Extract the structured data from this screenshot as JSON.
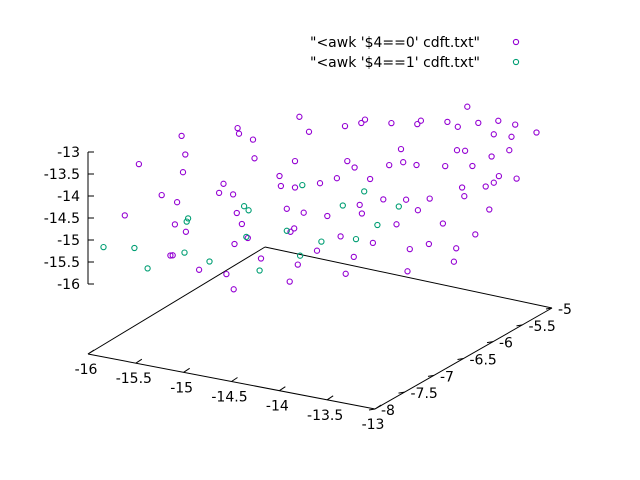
{
  "chart_data": {
    "type": "scatter",
    "title": "",
    "xlabel": "",
    "ylabel": "",
    "zlabel": "",
    "xlim": [
      -16,
      -13
    ],
    "ylim": [
      -8,
      -5
    ],
    "zlim": [
      -16,
      -13
    ],
    "x_ticks": [
      -16,
      -15.5,
      -15,
      -14.5,
      -14,
      -13.5,
      -13
    ],
    "y_ticks": [
      -8,
      -7.5,
      -7,
      -6.5,
      -6,
      -5.5,
      -5
    ],
    "z_ticks": [
      -13,
      -13.5,
      -14,
      -14.5,
      -15,
      -15.5,
      -16
    ],
    "x_tick_labels": [
      "-16",
      "-15.5",
      "-15",
      "-14.5",
      "-14",
      "-13.5",
      "-13"
    ],
    "y_tick_labels": [
      "-8",
      "-7.5",
      "-7",
      "-6.5",
      "-6",
      "-5.5",
      "-5"
    ],
    "z_tick_labels": [
      "-13",
      "-13.5",
      "-14",
      "-14.5",
      "-15",
      "-15.5",
      "-16"
    ],
    "legend_position": "top-right",
    "grid": false,
    "series": [
      {
        "name": "\"<awk '$4==0' cdft.txt\"",
        "color": "#9400d3",
        "points": [
          [
            -15.1,
            -6.9,
            -13.1
          ],
          [
            -14.3,
            -6.4,
            -13.0
          ],
          [
            -14.0,
            -6.1,
            -13.05
          ],
          [
            -13.6,
            -5.8,
            -13.1
          ],
          [
            -13.4,
            -5.6,
            -13.2
          ],
          [
            -15.5,
            -7.2,
            -13.9
          ],
          [
            -15.0,
            -6.8,
            -13.7
          ],
          [
            -14.7,
            -6.6,
            -13.8
          ],
          [
            -14.2,
            -6.4,
            -13.9
          ],
          [
            -13.9,
            -6.1,
            -13.6
          ],
          [
            -13.5,
            -5.8,
            -13.7
          ],
          [
            -13.3,
            -5.5,
            -13.5
          ],
          [
            -15.6,
            -7.4,
            -14.3
          ],
          [
            -15.2,
            -7.0,
            -14.2
          ],
          [
            -14.8,
            -6.7,
            -14.1
          ],
          [
            -14.5,
            -6.5,
            -14.3
          ],
          [
            -14.1,
            -6.3,
            -14.2
          ],
          [
            -13.8,
            -6.0,
            -14.0
          ],
          [
            -13.4,
            -5.7,
            -14.1
          ],
          [
            -13.2,
            -5.4,
            -13.9
          ],
          [
            -15.4,
            -7.5,
            -14.8
          ],
          [
            -15.0,
            -7.1,
            -14.7
          ],
          [
            -14.6,
            -6.9,
            -14.6
          ],
          [
            -14.3,
            -6.7,
            -14.8
          ],
          [
            -13.9,
            -6.4,
            -14.5
          ],
          [
            -13.6,
            -6.1,
            -14.6
          ],
          [
            -13.2,
            -5.8,
            -14.4
          ],
          [
            -15.3,
            -7.7,
            -15.3
          ],
          [
            -14.9,
            -7.3,
            -15.2
          ],
          [
            -14.5,
            -7.0,
            -15.0
          ],
          [
            -14.1,
            -6.8,
            -15.1
          ],
          [
            -13.7,
            -6.5,
            -14.9
          ],
          [
            -13.4,
            -6.2,
            -15.0
          ],
          [
            -13.1,
            -5.9,
            -14.8
          ],
          [
            -14.8,
            -7.6,
            -15.6
          ],
          [
            -14.3,
            -7.2,
            -15.5
          ],
          [
            -13.9,
            -6.9,
            -15.4
          ],
          [
            -13.5,
            -6.6,
            -15.3
          ],
          [
            -13.2,
            -6.3,
            -15.4
          ],
          [
            -15.7,
            -6.9,
            -13.4
          ],
          [
            -15.3,
            -6.6,
            -13.3
          ],
          [
            -14.9,
            -6.2,
            -13.2
          ],
          [
            -14.4,
            -5.9,
            -13.3
          ],
          [
            -14.0,
            -5.6,
            -13.4
          ],
          [
            -13.7,
            -5.3,
            -13.2
          ],
          [
            -15.8,
            -7.7,
            -14.6
          ],
          [
            -15.5,
            -7.3,
            -14.5
          ],
          [
            -15.1,
            -7.0,
            -14.4
          ],
          [
            -14.7,
            -6.6,
            -14.4
          ],
          [
            -14.4,
            -6.2,
            -14.0
          ],
          [
            -14.0,
            -5.9,
            -14.1
          ],
          [
            -13.6,
            -5.5,
            -14.0
          ],
          [
            -13.3,
            -5.2,
            -13.8
          ],
          [
            -15.2,
            -7.9,
            -15.1
          ],
          [
            -14.7,
            -7.4,
            -14.9
          ],
          [
            -14.4,
            -7.1,
            -14.8
          ],
          [
            -14.0,
            -6.6,
            -14.7
          ],
          [
            -13.6,
            -6.3,
            -14.7
          ],
          [
            -13.3,
            -6.0,
            -14.5
          ],
          [
            -13.0,
            -5.6,
            -14.3
          ],
          [
            -14.6,
            -7.8,
            -15.7
          ],
          [
            -14.2,
            -7.5,
            -15.6
          ],
          [
            -13.8,
            -7.2,
            -15.5
          ],
          [
            -13.4,
            -6.8,
            -15.6
          ],
          [
            -13.1,
            -6.5,
            -15.5
          ],
          [
            -15.9,
            -7.3,
            -13.8
          ],
          [
            -15.6,
            -7.0,
            -13.7
          ],
          [
            -15.2,
            -6.5,
            -13.6
          ],
          [
            -14.8,
            -6.2,
            -13.5
          ],
          [
            -14.5,
            -5.8,
            -13.5
          ],
          [
            -14.1,
            -5.5,
            -13.6
          ],
          [
            -13.8,
            -5.3,
            -13.7
          ],
          [
            -13.5,
            -5.1,
            -13.6
          ],
          [
            -15.0,
            -7.4,
            -14.0
          ],
          [
            -14.6,
            -7.0,
            -14.0
          ],
          [
            -14.2,
            -6.7,
            -13.9
          ],
          [
            -13.9,
            -6.3,
            -13.8
          ],
          [
            -13.5,
            -6.0,
            -13.9
          ],
          [
            -13.2,
            -5.7,
            -13.8
          ],
          [
            -15.1,
            -7.8,
            -14.6
          ],
          [
            -14.7,
            -7.5,
            -14.5
          ],
          [
            -14.3,
            -7.1,
            -14.4
          ],
          [
            -13.9,
            -6.8,
            -14.3
          ],
          [
            -13.6,
            -6.5,
            -14.3
          ],
          [
            -13.2,
            -6.2,
            -14.1
          ],
          [
            -13.0,
            -5.9,
            -14.0
          ],
          [
            -14.9,
            -7.9,
            -15.3
          ],
          [
            -14.5,
            -7.5,
            -15.2
          ],
          [
            -14.1,
            -7.2,
            -15.1
          ],
          [
            -13.7,
            -6.9,
            -15.0
          ],
          [
            -13.3,
            -6.6,
            -15.1
          ],
          [
            -13.0,
            -6.3,
            -15.0
          ],
          [
            -13.2,
            -5.3,
            -13.4
          ],
          [
            -13.1,
            -5.1,
            -13.7
          ],
          [
            -13.3,
            -5.5,
            -14.6
          ]
        ]
      },
      {
        "name": "\"<awk '$4==1' cdft.txt\"",
        "color": "#009e73",
        "points": [
          [
            -15.9,
            -7.9,
            -15.2
          ],
          [
            -15.7,
            -7.7,
            -15.3
          ],
          [
            -15.5,
            -7.8,
            -15.6
          ],
          [
            -15.3,
            -7.5,
            -15.4
          ],
          [
            -15.4,
            -7.3,
            -14.9
          ],
          [
            -15.1,
            -7.4,
            -15.6
          ],
          [
            -14.9,
            -7.1,
            -15.2
          ],
          [
            -15.0,
            -6.9,
            -14.8
          ],
          [
            -14.7,
            -7.2,
            -15.8
          ],
          [
            -14.6,
            -6.9,
            -15.1
          ],
          [
            -14.4,
            -7.0,
            -15.5
          ],
          [
            -14.3,
            -6.8,
            -15.3
          ],
          [
            -14.2,
            -6.6,
            -14.6
          ],
          [
            -14.0,
            -6.7,
            -15.2
          ],
          [
            -13.9,
            -6.5,
            -15.0
          ],
          [
            -15.2,
            -7.6,
            -14.5
          ],
          [
            -14.8,
            -7.3,
            -14.3
          ],
          [
            -14.5,
            -6.8,
            -14.1
          ],
          [
            -14.1,
            -6.4,
            -14.4
          ],
          [
            -13.8,
            -6.3,
            -14.7
          ]
        ]
      }
    ]
  }
}
